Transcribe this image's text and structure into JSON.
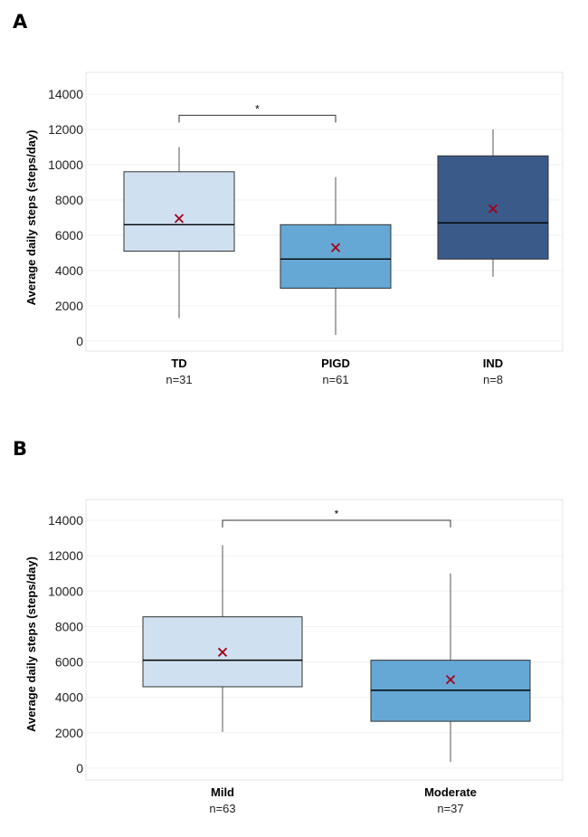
{
  "figure": {
    "panels": [
      {
        "letter": "A"
      },
      {
        "letter": "B"
      }
    ]
  },
  "chart_data": [
    {
      "type": "box",
      "panel": "A",
      "ylabel": "Average daily steps (steps/day)",
      "ylim": [
        0,
        14000
      ],
      "yticks": [
        0,
        2000,
        4000,
        6000,
        8000,
        10000,
        12000,
        14000
      ],
      "grid": true,
      "categories": [
        "TD",
        "PIGD",
        "IND"
      ],
      "n_labels": [
        "n=31",
        "n=61",
        "n=8"
      ],
      "colors": [
        "#cfe0f1",
        "#66a8d5",
        "#3a5a8a"
      ],
      "mean_marker_color": "#a30016",
      "boxes": [
        {
          "min": 1300,
          "q1": 5100,
          "median": 6600,
          "q3": 9600,
          "max": 11000,
          "mean": 6950
        },
        {
          "min": 350,
          "q1": 3000,
          "median": 4650,
          "q3": 6600,
          "max": 9300,
          "mean": 5300
        },
        {
          "min": 3650,
          "q1": 4650,
          "median": 6700,
          "q3": 10500,
          "max": 12000,
          "mean": 7500
        }
      ],
      "significance": [
        {
          "from": 0,
          "to": 1,
          "label": "*",
          "y": 12800
        }
      ]
    },
    {
      "type": "box",
      "panel": "B",
      "ylabel": "Average daily steps (steps/day)",
      "ylim": [
        0,
        14000
      ],
      "yticks": [
        0,
        2000,
        4000,
        6000,
        8000,
        10000,
        12000,
        14000
      ],
      "grid": true,
      "categories": [
        "Mild",
        "Moderate"
      ],
      "n_labels": [
        "n=63",
        "n=37"
      ],
      "colors": [
        "#cfe0f1",
        "#66a8d5"
      ],
      "mean_marker_color": "#a30016",
      "boxes": [
        {
          "min": 2050,
          "q1": 4600,
          "median": 6100,
          "q3": 8550,
          "max": 12600,
          "mean": 6550
        },
        {
          "min": 350,
          "q1": 2650,
          "median": 4400,
          "q3": 6100,
          "max": 11000,
          "mean": 5000
        }
      ],
      "significance": [
        {
          "from": 0,
          "to": 1,
          "label": "*",
          "y": 14000
        }
      ]
    }
  ]
}
